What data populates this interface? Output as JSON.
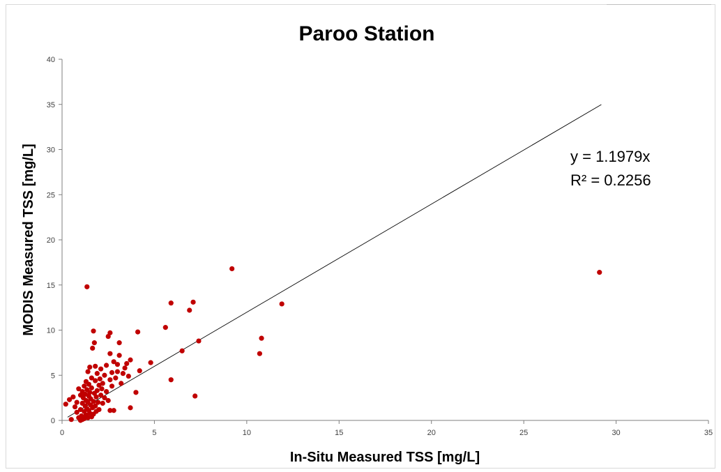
{
  "chart_data": {
    "type": "scatter",
    "title": "Paroo Station",
    "xlabel": "In-Situ Measured TSS [mg/L]",
    "ylabel": "MODIS Measured TSS [mg/L]",
    "xlim": [
      0,
      35
    ],
    "ylim": [
      0,
      40
    ],
    "xticks": [
      "0",
      "5",
      "10",
      "15",
      "20",
      "25",
      "30",
      "35"
    ],
    "yticks": [
      "0",
      "5",
      "10",
      "15",
      "20",
      "25",
      "30",
      "35",
      "40"
    ],
    "grid": false,
    "marker_color": "#c00000",
    "trendline": {
      "slope": 1.1979,
      "x_range": [
        0.3,
        29.2
      ],
      "equation_label": "y = 1.1979x",
      "r2_label": "R² = 0.2256"
    },
    "points": [
      {
        "x": 0.2,
        "y": 1.8
      },
      {
        "x": 0.4,
        "y": 2.3
      },
      {
        "x": 0.5,
        "y": 0.1
      },
      {
        "x": 0.6,
        "y": 2.6
      },
      {
        "x": 0.7,
        "y": 1.5
      },
      {
        "x": 0.8,
        "y": 2.0
      },
      {
        "x": 0.8,
        "y": 0.9
      },
      {
        "x": 0.9,
        "y": 3.5
      },
      {
        "x": 0.9,
        "y": 0.3
      },
      {
        "x": 1.0,
        "y": 1.2
      },
      {
        "x": 1.0,
        "y": 2.8
      },
      {
        "x": 1.0,
        "y": 0.0
      },
      {
        "x": 1.05,
        "y": 0.5
      },
      {
        "x": 1.1,
        "y": 1.9
      },
      {
        "x": 1.1,
        "y": 3.2
      },
      {
        "x": 1.1,
        "y": 0.1
      },
      {
        "x": 1.15,
        "y": 2.5
      },
      {
        "x": 1.2,
        "y": 1.0
      },
      {
        "x": 1.2,
        "y": 3.8
      },
      {
        "x": 1.2,
        "y": 0.2
      },
      {
        "x": 1.25,
        "y": 1.6
      },
      {
        "x": 1.25,
        "y": 2.9
      },
      {
        "x": 1.3,
        "y": 0.6
      },
      {
        "x": 1.3,
        "y": 2.2
      },
      {
        "x": 1.3,
        "y": 4.3
      },
      {
        "x": 1.35,
        "y": 1.3
      },
      {
        "x": 1.35,
        "y": 3.4
      },
      {
        "x": 1.35,
        "y": 14.8
      },
      {
        "x": 1.4,
        "y": 0.3
      },
      {
        "x": 1.4,
        "y": 2.0
      },
      {
        "x": 1.4,
        "y": 5.4
      },
      {
        "x": 1.45,
        "y": 1.1
      },
      {
        "x": 1.45,
        "y": 2.7
      },
      {
        "x": 1.45,
        "y": 4.0
      },
      {
        "x": 1.5,
        "y": 0.8
      },
      {
        "x": 1.5,
        "y": 3.1
      },
      {
        "x": 1.5,
        "y": 5.9
      },
      {
        "x": 1.55,
        "y": 1.7
      },
      {
        "x": 1.55,
        "y": 2.4
      },
      {
        "x": 1.6,
        "y": 0.4
      },
      {
        "x": 1.6,
        "y": 3.6
      },
      {
        "x": 1.6,
        "y": 4.7
      },
      {
        "x": 1.65,
        "y": 1.4
      },
      {
        "x": 1.65,
        "y": 8.0
      },
      {
        "x": 1.7,
        "y": 2.1
      },
      {
        "x": 1.7,
        "y": 9.9
      },
      {
        "x": 1.7,
        "y": 0.7
      },
      {
        "x": 1.75,
        "y": 3.0
      },
      {
        "x": 1.75,
        "y": 8.6
      },
      {
        "x": 1.8,
        "y": 1.6
      },
      {
        "x": 1.8,
        "y": 4.4
      },
      {
        "x": 1.8,
        "y": 6.0
      },
      {
        "x": 1.85,
        "y": 2.6
      },
      {
        "x": 1.85,
        "y": 1.0
      },
      {
        "x": 1.9,
        "y": 3.3
      },
      {
        "x": 1.9,
        "y": 5.2
      },
      {
        "x": 1.95,
        "y": 2.0
      },
      {
        "x": 2.0,
        "y": 3.9
      },
      {
        "x": 2.0,
        "y": 1.2
      },
      {
        "x": 2.05,
        "y": 4.6
      },
      {
        "x": 2.1,
        "y": 2.8
      },
      {
        "x": 2.1,
        "y": 5.7
      },
      {
        "x": 2.15,
        "y": 3.5
      },
      {
        "x": 2.2,
        "y": 1.9
      },
      {
        "x": 2.2,
        "y": 4.1
      },
      {
        "x": 2.3,
        "y": 2.5
      },
      {
        "x": 2.3,
        "y": 5.0
      },
      {
        "x": 2.4,
        "y": 3.2
      },
      {
        "x": 2.4,
        "y": 6.1
      },
      {
        "x": 2.5,
        "y": 9.3
      },
      {
        "x": 2.5,
        "y": 2.2
      },
      {
        "x": 2.6,
        "y": 9.7
      },
      {
        "x": 2.6,
        "y": 4.5
      },
      {
        "x": 2.6,
        "y": 7.4
      },
      {
        "x": 2.6,
        "y": 1.1
      },
      {
        "x": 2.7,
        "y": 3.8
      },
      {
        "x": 2.7,
        "y": 5.3
      },
      {
        "x": 2.8,
        "y": 1.1
      },
      {
        "x": 2.8,
        "y": 6.5
      },
      {
        "x": 2.9,
        "y": 4.7
      },
      {
        "x": 3.0,
        "y": 6.2
      },
      {
        "x": 3.0,
        "y": 5.4
      },
      {
        "x": 3.1,
        "y": 8.6
      },
      {
        "x": 3.1,
        "y": 7.2
      },
      {
        "x": 3.2,
        "y": 4.1
      },
      {
        "x": 3.3,
        "y": 5.2
      },
      {
        "x": 3.4,
        "y": 5.8
      },
      {
        "x": 3.5,
        "y": 6.3
      },
      {
        "x": 3.6,
        "y": 4.9
      },
      {
        "x": 3.7,
        "y": 6.7
      },
      {
        "x": 3.7,
        "y": 1.4
      },
      {
        "x": 4.0,
        "y": 3.1
      },
      {
        "x": 4.1,
        "y": 9.8
      },
      {
        "x": 4.2,
        "y": 5.5
      },
      {
        "x": 4.8,
        "y": 6.4
      },
      {
        "x": 5.6,
        "y": 10.3
      },
      {
        "x": 5.9,
        "y": 4.5
      },
      {
        "x": 5.9,
        "y": 13.0
      },
      {
        "x": 6.5,
        "y": 7.7
      },
      {
        "x": 6.9,
        "y": 12.2
      },
      {
        "x": 7.1,
        "y": 13.1
      },
      {
        "x": 7.2,
        "y": 2.7
      },
      {
        "x": 7.4,
        "y": 8.8
      },
      {
        "x": 9.2,
        "y": 16.8
      },
      {
        "x": 10.7,
        "y": 7.4
      },
      {
        "x": 10.8,
        "y": 9.1
      },
      {
        "x": 11.9,
        "y": 12.9
      },
      {
        "x": 29.1,
        "y": 16.4
      }
    ]
  }
}
